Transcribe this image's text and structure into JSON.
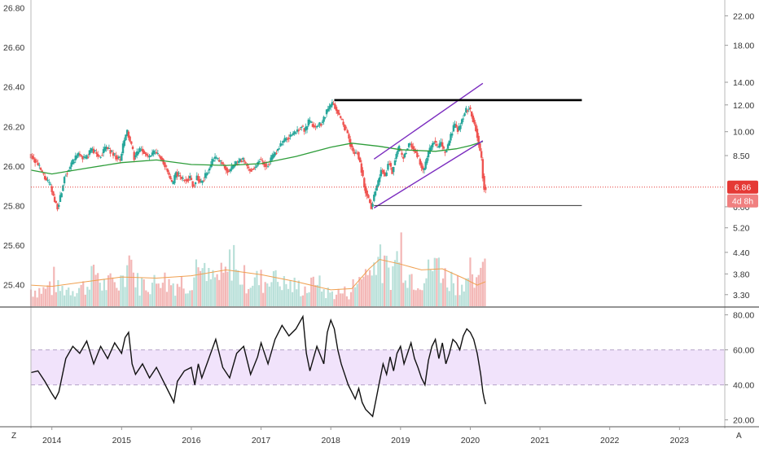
{
  "colors": {
    "up": "#26a69a",
    "down": "#ef5350",
    "ma_green": "#2e9d3a",
    "vol_ma": "#f0a050",
    "channel": "#7b2cbf",
    "resistance": "#000000",
    "support": "#333333",
    "price_line": "#e53935",
    "rsi_line": "#111111",
    "rsi_band": "#f1e3fb"
  },
  "corner": {
    "left": "Z",
    "right": "A"
  },
  "chart_data": [
    {
      "type": "candlestick",
      "x_axis": {
        "ticks": [
          "2014",
          "2015",
          "2016",
          "2017",
          "2018",
          "2019",
          "2020",
          "2021",
          "2022",
          "2023"
        ],
        "range": [
          2013.7,
          2023.65
        ]
      },
      "left_axis": {
        "ticks": [
          "26.80",
          "26.60",
          "26.40",
          "26.20",
          "26.00",
          "25.80",
          "25.60",
          "25.40"
        ],
        "range": [
          25.29,
          26.84
        ]
      },
      "right_axis": {
        "ticks": [
          "22.00",
          "18.00",
          "14.00",
          "12.00",
          "10.00",
          "8.50",
          "6.00",
          "5.20",
          "4.40",
          "3.80",
          "3.30"
        ],
        "log": true,
        "range": [
          3.05,
          24.5
        ]
      },
      "last_price": {
        "value": 6.86,
        "label": "6.86"
      },
      "countdown": "4d 8h",
      "series": [
        {
          "kind": "price",
          "points": [
            [
              2013.7,
              8.6
            ],
            [
              2013.8,
              8.1
            ],
            [
              2013.9,
              7.4
            ],
            [
              2014.0,
              6.9
            ],
            [
              2014.05,
              6.3
            ],
            [
              2014.1,
              6.0
            ],
            [
              2014.15,
              6.5
            ],
            [
              2014.2,
              7.4
            ],
            [
              2014.3,
              8.0
            ],
            [
              2014.4,
              8.6
            ],
            [
              2014.5,
              8.3
            ],
            [
              2014.6,
              8.9
            ],
            [
              2014.7,
              8.4
            ],
            [
              2014.8,
              9.0
            ],
            [
              2014.9,
              8.6
            ],
            [
              2015.0,
              8.2
            ],
            [
              2015.05,
              9.3
            ],
            [
              2015.1,
              10.0
            ],
            [
              2015.15,
              9.2
            ],
            [
              2015.2,
              8.4
            ],
            [
              2015.3,
              8.9
            ],
            [
              2015.4,
              8.4
            ],
            [
              2015.5,
              8.7
            ],
            [
              2015.6,
              8.3
            ],
            [
              2015.7,
              7.4
            ],
            [
              2015.75,
              6.9
            ],
            [
              2015.8,
              7.6
            ],
            [
              2015.9,
              7.2
            ],
            [
              2016.0,
              7.3
            ],
            [
              2016.05,
              6.9
            ],
            [
              2016.1,
              7.4
            ],
            [
              2016.15,
              7.0
            ],
            [
              2016.25,
              7.6
            ],
            [
              2016.35,
              8.4
            ],
            [
              2016.45,
              8.1
            ],
            [
              2016.55,
              7.6
            ],
            [
              2016.65,
              8.0
            ],
            [
              2016.75,
              8.3
            ],
            [
              2016.85,
              7.7
            ],
            [
              2016.95,
              7.9
            ],
            [
              2017.0,
              8.3
            ],
            [
              2017.1,
              7.9
            ],
            [
              2017.2,
              8.5
            ],
            [
              2017.3,
              9.2
            ],
            [
              2017.4,
              9.6
            ],
            [
              2017.5,
              9.9
            ],
            [
              2017.6,
              10.4
            ],
            [
              2017.65,
              10.0
            ],
            [
              2017.7,
              10.7
            ],
            [
              2017.8,
              10.3
            ],
            [
              2017.9,
              10.7
            ],
            [
              2017.95,
              11.4
            ],
            [
              2018.0,
              11.8
            ],
            [
              2018.05,
              12.2
            ],
            [
              2018.1,
              11.6
            ],
            [
              2018.15,
              11.0
            ],
            [
              2018.2,
              10.5
            ],
            [
              2018.25,
              10.0
            ],
            [
              2018.3,
              9.2
            ],
            [
              2018.35,
              8.6
            ],
            [
              2018.4,
              8.7
            ],
            [
              2018.45,
              7.9
            ],
            [
              2018.5,
              6.9
            ],
            [
              2018.55,
              6.4
            ],
            [
              2018.6,
              6.0
            ],
            [
              2018.65,
              6.6
            ],
            [
              2018.7,
              7.1
            ],
            [
              2018.75,
              7.8
            ],
            [
              2018.8,
              7.4
            ],
            [
              2018.85,
              8.2
            ],
            [
              2018.9,
              7.6
            ],
            [
              2018.95,
              8.5
            ],
            [
              2019.0,
              8.9
            ],
            [
              2019.05,
              8.3
            ],
            [
              2019.1,
              8.8
            ],
            [
              2019.15,
              9.3
            ],
            [
              2019.2,
              8.9
            ],
            [
              2019.25,
              8.6
            ],
            [
              2019.3,
              8.1
            ],
            [
              2019.35,
              7.6
            ],
            [
              2019.4,
              8.4
            ],
            [
              2019.45,
              8.9
            ],
            [
              2019.5,
              9.4
            ],
            [
              2019.55,
              8.9
            ],
            [
              2019.6,
              9.3
            ],
            [
              2019.65,
              8.6
            ],
            [
              2019.7,
              9.1
            ],
            [
              2019.75,
              9.9
            ],
            [
              2019.8,
              10.5
            ],
            [
              2019.85,
              10.0
            ],
            [
              2019.9,
              10.9
            ],
            [
              2019.95,
              11.5
            ],
            [
              2020.0,
              11.8
            ],
            [
              2020.05,
              11.0
            ],
            [
              2020.1,
              10.2
            ],
            [
              2020.15,
              9.0
            ],
            [
              2020.18,
              8.3
            ],
            [
              2020.2,
              7.4
            ],
            [
              2020.22,
              6.86
            ]
          ]
        },
        {
          "kind": "moving_average",
          "points": [
            [
              2013.7,
              7.7
            ],
            [
              2014.0,
              7.5
            ],
            [
              2014.5,
              7.8
            ],
            [
              2015.0,
              8.1
            ],
            [
              2015.5,
              8.25
            ],
            [
              2016.0,
              8.0
            ],
            [
              2016.5,
              7.95
            ],
            [
              2017.0,
              8.05
            ],
            [
              2017.5,
              8.45
            ],
            [
              2018.0,
              9.0
            ],
            [
              2018.3,
              9.25
            ],
            [
              2018.7,
              9.05
            ],
            [
              2019.0,
              8.85
            ],
            [
              2019.5,
              8.75
            ],
            [
              2019.8,
              8.9
            ],
            [
              2020.0,
              9.1
            ],
            [
              2020.18,
              9.35
            ]
          ]
        },
        {
          "kind": "rising_channel",
          "lower": [
            [
              2018.62,
              5.95
            ],
            [
              2020.18,
              9.4
            ]
          ],
          "upper": [
            [
              2018.62,
              8.3
            ],
            [
              2020.18,
              13.9
            ]
          ]
        },
        {
          "kind": "resistance",
          "value": 12.4,
          "from": 2018.05,
          "to": 2021.6
        },
        {
          "kind": "support",
          "value": 6.05,
          "from": 2018.62,
          "to": 2021.6
        }
      ]
    },
    {
      "type": "bar",
      "name": "volume",
      "x_range": [
        2013.7,
        2020.22
      ],
      "bar_step": 0.03,
      "baseline": 0.1,
      "peaks": [
        [
          2014.0,
          0.9
        ],
        [
          2014.6,
          1.4
        ],
        [
          2015.1,
          1.8
        ],
        [
          2015.6,
          1.2
        ],
        [
          2016.1,
          1.3
        ],
        [
          2016.6,
          1.6
        ],
        [
          2017.2,
          1.2
        ],
        [
          2017.8,
          0.8
        ],
        [
          2018.4,
          1.3
        ],
        [
          2018.6,
          3.0
        ],
        [
          2019.0,
          2.2
        ],
        [
          2019.5,
          1.7
        ],
        [
          2020.0,
          1.0
        ],
        [
          2020.2,
          2.1
        ]
      ],
      "ma": [
        [
          2013.7,
          0.9
        ],
        [
          2014.0,
          0.85
        ],
        [
          2014.5,
          1.05
        ],
        [
          2015.0,
          1.25
        ],
        [
          2015.5,
          1.2
        ],
        [
          2016.0,
          1.3
        ],
        [
          2016.5,
          1.55
        ],
        [
          2017.0,
          1.35
        ],
        [
          2017.5,
          1.05
        ],
        [
          2018.0,
          0.7
        ],
        [
          2018.3,
          0.75
        ],
        [
          2018.55,
          1.6
        ],
        [
          2018.7,
          2.0
        ],
        [
          2019.0,
          1.8
        ],
        [
          2019.3,
          1.55
        ],
        [
          2019.6,
          1.6
        ],
        [
          2019.9,
          1.2
        ],
        [
          2020.1,
          0.9
        ],
        [
          2020.22,
          1.05
        ]
      ],
      "max": 3.2
    },
    {
      "type": "line",
      "name": "RSI",
      "y_axis": {
        "ticks": [
          "80.00",
          "60.00",
          "40.00",
          "20.00"
        ],
        "range": [
          17,
          84
        ]
      },
      "band": [
        40,
        60
      ],
      "points": [
        [
          2013.7,
          47
        ],
        [
          2013.8,
          48
        ],
        [
          2013.9,
          42
        ],
        [
          2014.0,
          35
        ],
        [
          2014.05,
          32
        ],
        [
          2014.1,
          36
        ],
        [
          2014.2,
          55
        ],
        [
          2014.3,
          62
        ],
        [
          2014.4,
          58
        ],
        [
          2014.5,
          65
        ],
        [
          2014.6,
          52
        ],
        [
          2014.7,
          62
        ],
        [
          2014.8,
          55
        ],
        [
          2014.9,
          64
        ],
        [
          2015.0,
          58
        ],
        [
          2015.05,
          67
        ],
        [
          2015.1,
          70
        ],
        [
          2015.15,
          52
        ],
        [
          2015.2,
          46
        ],
        [
          2015.3,
          52
        ],
        [
          2015.4,
          44
        ],
        [
          2015.5,
          50
        ],
        [
          2015.6,
          42
        ],
        [
          2015.7,
          34
        ],
        [
          2015.75,
          30
        ],
        [
          2015.8,
          42
        ],
        [
          2015.9,
          48
        ],
        [
          2016.0,
          50
        ],
        [
          2016.05,
          40
        ],
        [
          2016.1,
          52
        ],
        [
          2016.15,
          44
        ],
        [
          2016.25,
          55
        ],
        [
          2016.35,
          66
        ],
        [
          2016.45,
          50
        ],
        [
          2016.55,
          44
        ],
        [
          2016.65,
          58
        ],
        [
          2016.75,
          62
        ],
        [
          2016.85,
          46
        ],
        [
          2016.95,
          56
        ],
        [
          2017.0,
          64
        ],
        [
          2017.1,
          52
        ],
        [
          2017.2,
          66
        ],
        [
          2017.3,
          74
        ],
        [
          2017.4,
          68
        ],
        [
          2017.5,
          72
        ],
        [
          2017.6,
          79
        ],
        [
          2017.65,
          58
        ],
        [
          2017.7,
          48
        ],
        [
          2017.8,
          62
        ],
        [
          2017.9,
          52
        ],
        [
          2017.95,
          70
        ],
        [
          2018.0,
          77
        ],
        [
          2018.05,
          72
        ],
        [
          2018.1,
          60
        ],
        [
          2018.15,
          52
        ],
        [
          2018.2,
          46
        ],
        [
          2018.25,
          40
        ],
        [
          2018.3,
          36
        ],
        [
          2018.35,
          32
        ],
        [
          2018.4,
          38
        ],
        [
          2018.45,
          30
        ],
        [
          2018.5,
          26
        ],
        [
          2018.55,
          24
        ],
        [
          2018.6,
          22
        ],
        [
          2018.65,
          32
        ],
        [
          2018.7,
          42
        ],
        [
          2018.75,
          52
        ],
        [
          2018.8,
          46
        ],
        [
          2018.85,
          56
        ],
        [
          2018.9,
          48
        ],
        [
          2018.95,
          58
        ],
        [
          2019.0,
          62
        ],
        [
          2019.05,
          52
        ],
        [
          2019.1,
          58
        ],
        [
          2019.15,
          64
        ],
        [
          2019.2,
          55
        ],
        [
          2019.25,
          50
        ],
        [
          2019.3,
          44
        ],
        [
          2019.35,
          40
        ],
        [
          2019.4,
          54
        ],
        [
          2019.45,
          62
        ],
        [
          2019.5,
          66
        ],
        [
          2019.55,
          55
        ],
        [
          2019.6,
          64
        ],
        [
          2019.65,
          52
        ],
        [
          2019.7,
          58
        ],
        [
          2019.75,
          66
        ],
        [
          2019.8,
          64
        ],
        [
          2019.85,
          60
        ],
        [
          2019.9,
          68
        ],
        [
          2019.95,
          72
        ],
        [
          2020.0,
          70
        ],
        [
          2020.05,
          66
        ],
        [
          2020.1,
          58
        ],
        [
          2020.15,
          46
        ],
        [
          2020.18,
          36
        ],
        [
          2020.2,
          32
        ],
        [
          2020.22,
          29
        ]
      ]
    }
  ]
}
